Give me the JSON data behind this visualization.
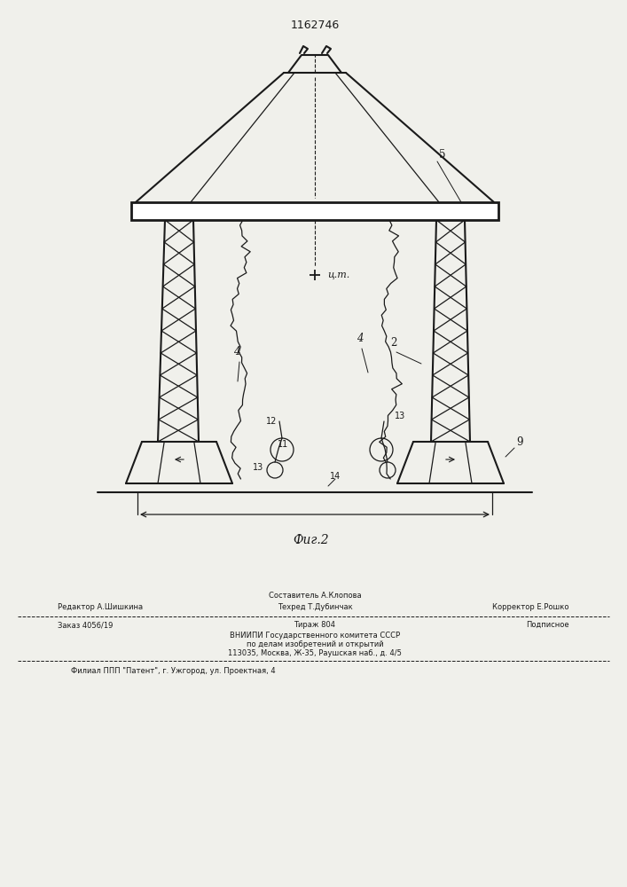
{
  "patent_number": "1162746",
  "fig_label": "Фиг.2",
  "bg_color": "#f0f0eb",
  "line_color": "#1a1a1a",
  "footer": {
    "line1_center": "Составитель А.Клопова",
    "line2_left": "Редактор А.Шишкина",
    "line2_center": "Техред Т.Дубинчак",
    "line2_right": "Корректор Е.Рошко",
    "line3_left": "Заказ 4056/19",
    "line3_center": "Тираж 804",
    "line3_right": "Подписное",
    "line4": "ВНИИПИ Государственного комитета СССР",
    "line5": "по делам изобретений и открытий",
    "line6": "113035, Москва, Ж-35, Раушская наб., д. 4/5",
    "line7": "Филиал ППП \"Патент\", г. Ужгород, ул. Проектная, 4"
  }
}
